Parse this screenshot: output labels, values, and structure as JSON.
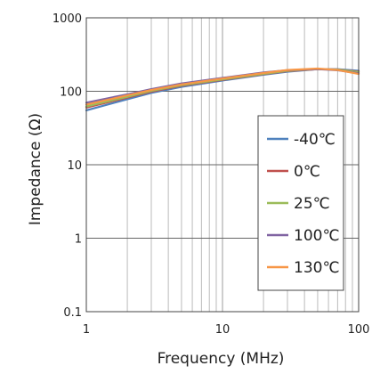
{
  "chart_data": {
    "type": "line",
    "title": "",
    "xlabel": "Frequency (MHz)",
    "ylabel": "Impedance (Ω)",
    "xscale": "log",
    "yscale": "log",
    "xlim": [
      1,
      100
    ],
    "ylim": [
      0.1,
      1000
    ],
    "xticks": [
      {
        "value": 1,
        "label": "1"
      },
      {
        "value": 10,
        "label": "10"
      },
      {
        "value": 100,
        "label": "100"
      }
    ],
    "yticks": [
      {
        "value": 0.1,
        "label": "0.1"
      },
      {
        "value": 1,
        "label": "1"
      },
      {
        "value": 10,
        "label": "10"
      },
      {
        "value": 100,
        "label": "100"
      },
      {
        "value": 1000,
        "label": "1000"
      }
    ],
    "grid": true,
    "legend_position": "bottom-right",
    "series": [
      {
        "name": "-40℃",
        "color": "#4f81bd",
        "x": [
          1,
          2,
          3,
          5,
          10,
          20,
          30,
          50,
          70,
          100
        ],
        "y": [
          55,
          78,
          95,
          115,
          140,
          168,
          185,
          200,
          200,
          190
        ]
      },
      {
        "name": "0℃",
        "color": "#c0504d",
        "x": [
          1,
          2,
          3,
          5,
          10,
          20,
          30,
          50,
          70,
          100
        ],
        "y": [
          60,
          82,
          99,
          119,
          143,
          171,
          188,
          200,
          198,
          185
        ]
      },
      {
        "name": "25℃",
        "color": "#9bbb59",
        "x": [
          1,
          2,
          3,
          5,
          10,
          20,
          30,
          50,
          70,
          100
        ],
        "y": [
          62,
          84,
          101,
          121,
          145,
          173,
          190,
          201,
          197,
          182
        ]
      },
      {
        "name": "100℃",
        "color": "#8064a2",
        "x": [
          1,
          2,
          3,
          5,
          10,
          20,
          30,
          50,
          70,
          100
        ],
        "y": [
          70,
          91,
          107,
          128,
          152,
          180,
          193,
          200,
          193,
          175
        ]
      },
      {
        "name": "130℃",
        "color": "#f79646",
        "x": [
          1,
          2,
          3,
          5,
          10,
          20,
          30,
          50,
          70,
          100
        ],
        "y": [
          66,
          88,
          104,
          124,
          149,
          177,
          195,
          204,
          195,
          172
        ]
      }
    ]
  }
}
